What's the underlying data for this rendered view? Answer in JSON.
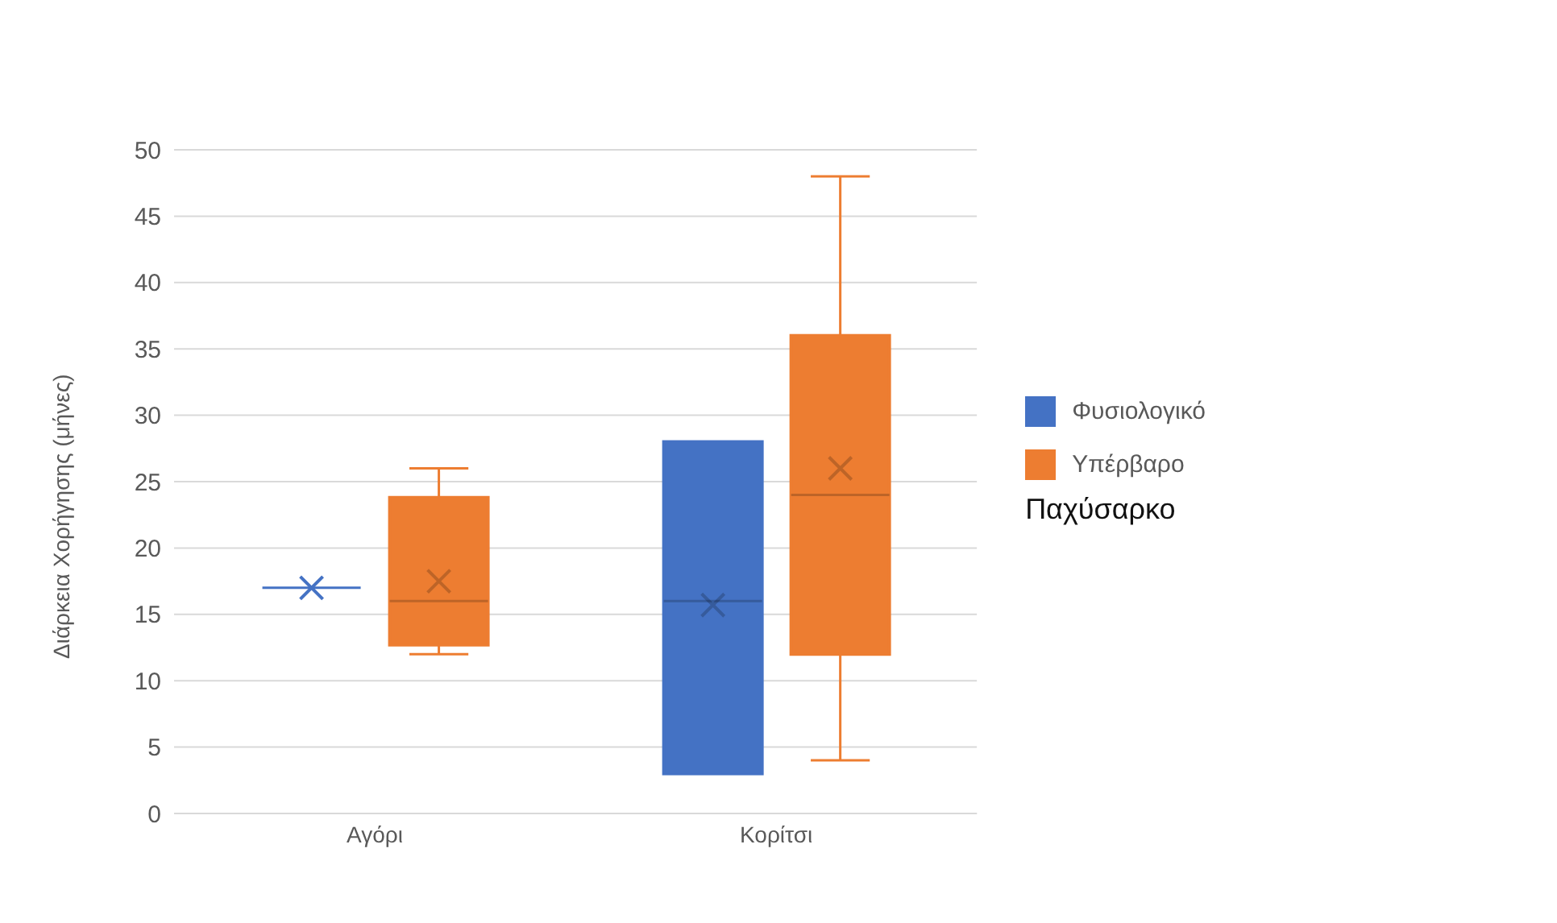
{
  "chart_data": {
    "type": "box",
    "ylabel": "Διάρκεια Χορήγησης (μήνες)",
    "categories": [
      "Αγόρι",
      "Κορίτσι"
    ],
    "series": [
      {
        "name": "Φυσιολογικό",
        "color": "#4472c4",
        "boxes": [
          {
            "low": 17,
            "q1": 17,
            "median": 17,
            "q3": 17,
            "high": 17,
            "mean": 17
          },
          {
            "low": 3,
            "q1": 3,
            "median": 16,
            "q3": 28,
            "high": 28,
            "mean": 15.7
          }
        ]
      },
      {
        "name": "Υπέρβαρο",
        "color": "#ed7d31",
        "boxes": [
          {
            "low": 12,
            "q1": 12.7,
            "median": 16,
            "q3": 23.8,
            "high": 26,
            "mean": 17.5
          },
          {
            "low": 4,
            "q1": 12,
            "median": 24,
            "q3": 36,
            "high": 48,
            "mean": 26
          }
        ]
      }
    ],
    "annotations": [
      "Παχύσαρκο"
    ],
    "ylim": [
      0,
      50
    ],
    "yticks": [
      0,
      5,
      10,
      15,
      20,
      25,
      30,
      35,
      40,
      45,
      50
    ],
    "grid": "y",
    "legend": "right"
  }
}
